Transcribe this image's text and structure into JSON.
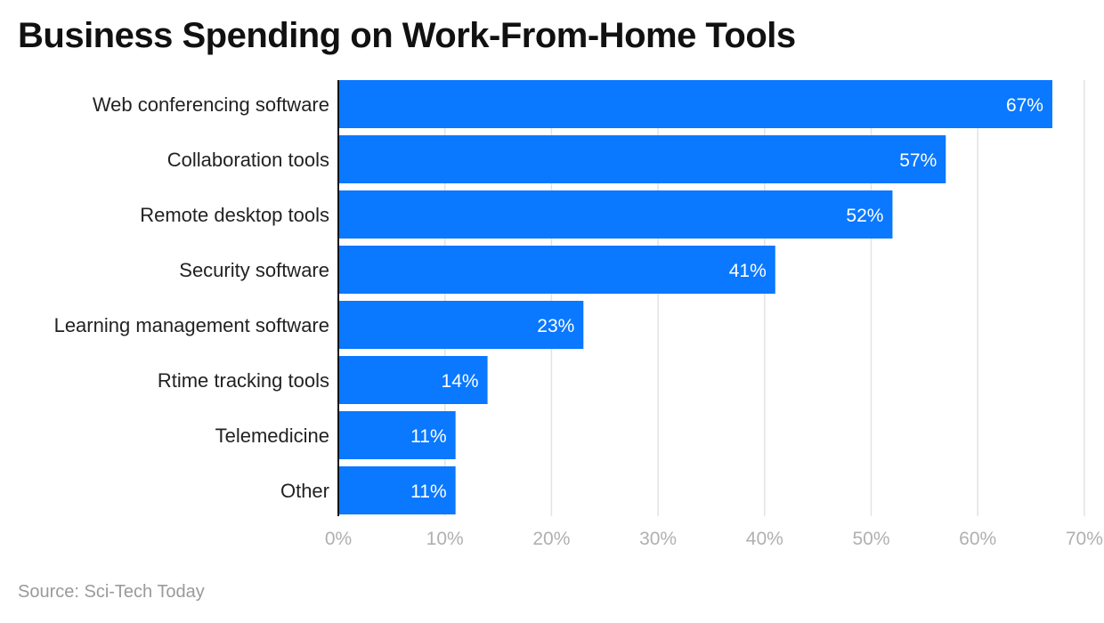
{
  "chart_data": {
    "type": "bar",
    "orientation": "horizontal",
    "title": "Business Spending on Work-From-Home Tools",
    "categories": [
      "Web conferencing software",
      "Collaboration tools",
      "Remote desktop tools",
      "Security software",
      "Learning management software",
      "Rtime tracking tools",
      "Telemedicine",
      "Other"
    ],
    "values": [
      67,
      57,
      52,
      41,
      23,
      14,
      11,
      11
    ],
    "value_labels": [
      "67%",
      "57%",
      "52%",
      "41%",
      "23%",
      "14%",
      "11%",
      "11%"
    ],
    "xlim": [
      0,
      70
    ],
    "xticks": [
      0,
      10,
      20,
      30,
      40,
      50,
      60,
      70
    ],
    "xtick_labels": [
      "0%",
      "10%",
      "20%",
      "30%",
      "40%",
      "50%",
      "60%",
      "70%"
    ],
    "xlabel": "",
    "ylabel": "",
    "grid": true,
    "bar_color": "#0a78ff",
    "source": "Source: Sci-Tech Today"
  }
}
